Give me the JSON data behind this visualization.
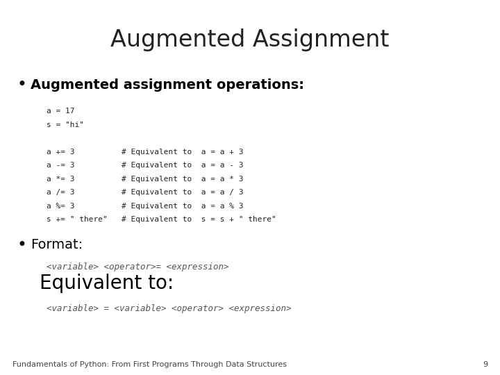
{
  "title": "Augmented Assignment",
  "title_fontsize": 24,
  "bg_color": "#ffffff",
  "bullet1_text": "Augmented assignment operations",
  "bullet1_fontsize": 14,
  "code_box1_bg": "#e6e6e6",
  "code_lines": [
    "a = 17",
    "s = \"hi\"",
    "",
    "a += 3          # Equivalent to  a = a + 3",
    "a -= 3          # Equivalent to  a = a - 3",
    "a *= 3          # Equivalent to  a = a * 3",
    "a /= 3          # Equivalent to  a = a / 3",
    "a %= 3          # Equivalent to  a = a % 3",
    "s += \" there\"   # Equivalent to  s = s + \" there\""
  ],
  "code_fontsize": 8,
  "bullet2_text": "Format:",
  "bullet2_fontsize": 14,
  "code_box2_bg": "#e6e6e6",
  "format_code": "<variable> <operator>= <expression>",
  "format_code_fontsize": 8,
  "equiv_text": "Equivalent to:",
  "equiv_fontsize": 20,
  "code_box3_bg": "#e6e6e6",
  "equiv_code": "<variable> = <variable> <operator> <expression>",
  "equiv_code_fontsize": 8,
  "footer_text": "Fundamentals of Python: From First Programs Through Data Structures",
  "footer_page": "9",
  "footer_fontsize": 8
}
